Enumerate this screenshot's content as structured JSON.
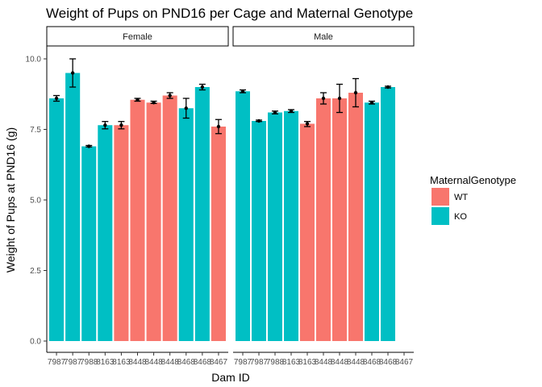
{
  "chart_data": {
    "type": "bar",
    "title": "Weight of Pups on PND16 per Cage and Maternal Genotype",
    "xlabel": "Dam ID",
    "ylabel": "Weight of Pups at PND16 (g)",
    "ylim": [
      0,
      11
    ],
    "yticks": [
      "0.0",
      "2.5",
      "5.0",
      "7.5",
      "10.0"
    ],
    "ytick_values": [
      0,
      2.5,
      5,
      7.5,
      10
    ],
    "grid": false,
    "legend": {
      "title": "MaternalGenotype",
      "position": "right",
      "entries": [
        {
          "label": "WT",
          "color": "#F8766D"
        },
        {
          "label": "KO",
          "color": "#00BFC4"
        }
      ]
    },
    "categories": [
      "7987",
      "7987",
      "7988",
      "8163",
      "8163",
      "8448",
      "8448",
      "8448",
      "8468",
      "8468",
      "8467"
    ],
    "panels": [
      {
        "label": "Female",
        "bars": [
          {
            "category": "7987",
            "genotype": "KO",
            "value": 8.6,
            "lo": 8.5,
            "hi": 8.7
          },
          {
            "category": "7987",
            "genotype": "KO",
            "value": 9.5,
            "lo": 9.0,
            "hi": 10.0
          },
          {
            "category": "7988",
            "genotype": "KO",
            "value": 6.9,
            "lo": 6.88,
            "hi": 6.93
          },
          {
            "category": "8163",
            "genotype": "KO",
            "value": 7.65,
            "lo": 7.52,
            "hi": 7.78
          },
          {
            "category": "8163",
            "genotype": "WT",
            "value": 7.65,
            "lo": 7.52,
            "hi": 7.78
          },
          {
            "category": "8448",
            "genotype": "WT",
            "value": 8.55,
            "lo": 8.5,
            "hi": 8.6
          },
          {
            "category": "8448",
            "genotype": "WT",
            "value": 8.45,
            "lo": 8.42,
            "hi": 8.5
          },
          {
            "category": "8448",
            "genotype": "WT",
            "value": 8.7,
            "lo": 8.6,
            "hi": 8.8
          },
          {
            "category": "8468",
            "genotype": "KO",
            "value": 8.25,
            "lo": 7.9,
            "hi": 8.6
          },
          {
            "category": "8468",
            "genotype": "KO",
            "value": 9.0,
            "lo": 8.9,
            "hi": 9.1
          },
          {
            "category": "8467",
            "genotype": "WT",
            "value": 7.6,
            "lo": 7.35,
            "hi": 7.85
          }
        ]
      },
      {
        "label": "Male",
        "bars": [
          {
            "category": "7987",
            "genotype": "KO",
            "value": 8.85,
            "lo": 8.8,
            "hi": 8.9
          },
          {
            "category": "7987",
            "genotype": "KO",
            "value": 7.8,
            "lo": 7.78,
            "hi": 7.83
          },
          {
            "category": "7988",
            "genotype": "KO",
            "value": 8.1,
            "lo": 8.05,
            "hi": 8.15
          },
          {
            "category": "8163",
            "genotype": "KO",
            "value": 8.15,
            "lo": 8.1,
            "hi": 8.2
          },
          {
            "category": "8163",
            "genotype": "WT",
            "value": 7.7,
            "lo": 7.6,
            "hi": 7.78
          },
          {
            "category": "8448",
            "genotype": "WT",
            "value": 8.6,
            "lo": 8.4,
            "hi": 8.8
          },
          {
            "category": "8448",
            "genotype": "WT",
            "value": 8.6,
            "lo": 8.1,
            "hi": 9.1
          },
          {
            "category": "8448",
            "genotype": "WT",
            "value": 8.8,
            "lo": 8.3,
            "hi": 9.3
          },
          {
            "category": "8468",
            "genotype": "KO",
            "value": 8.45,
            "lo": 8.4,
            "hi": 8.5
          },
          {
            "category": "8468",
            "genotype": "KO",
            "value": 9.0,
            "lo": 8.97,
            "hi": 9.03
          },
          {
            "category": "8467",
            "genotype": null,
            "value": null,
            "lo": null,
            "hi": null
          }
        ]
      }
    ]
  }
}
